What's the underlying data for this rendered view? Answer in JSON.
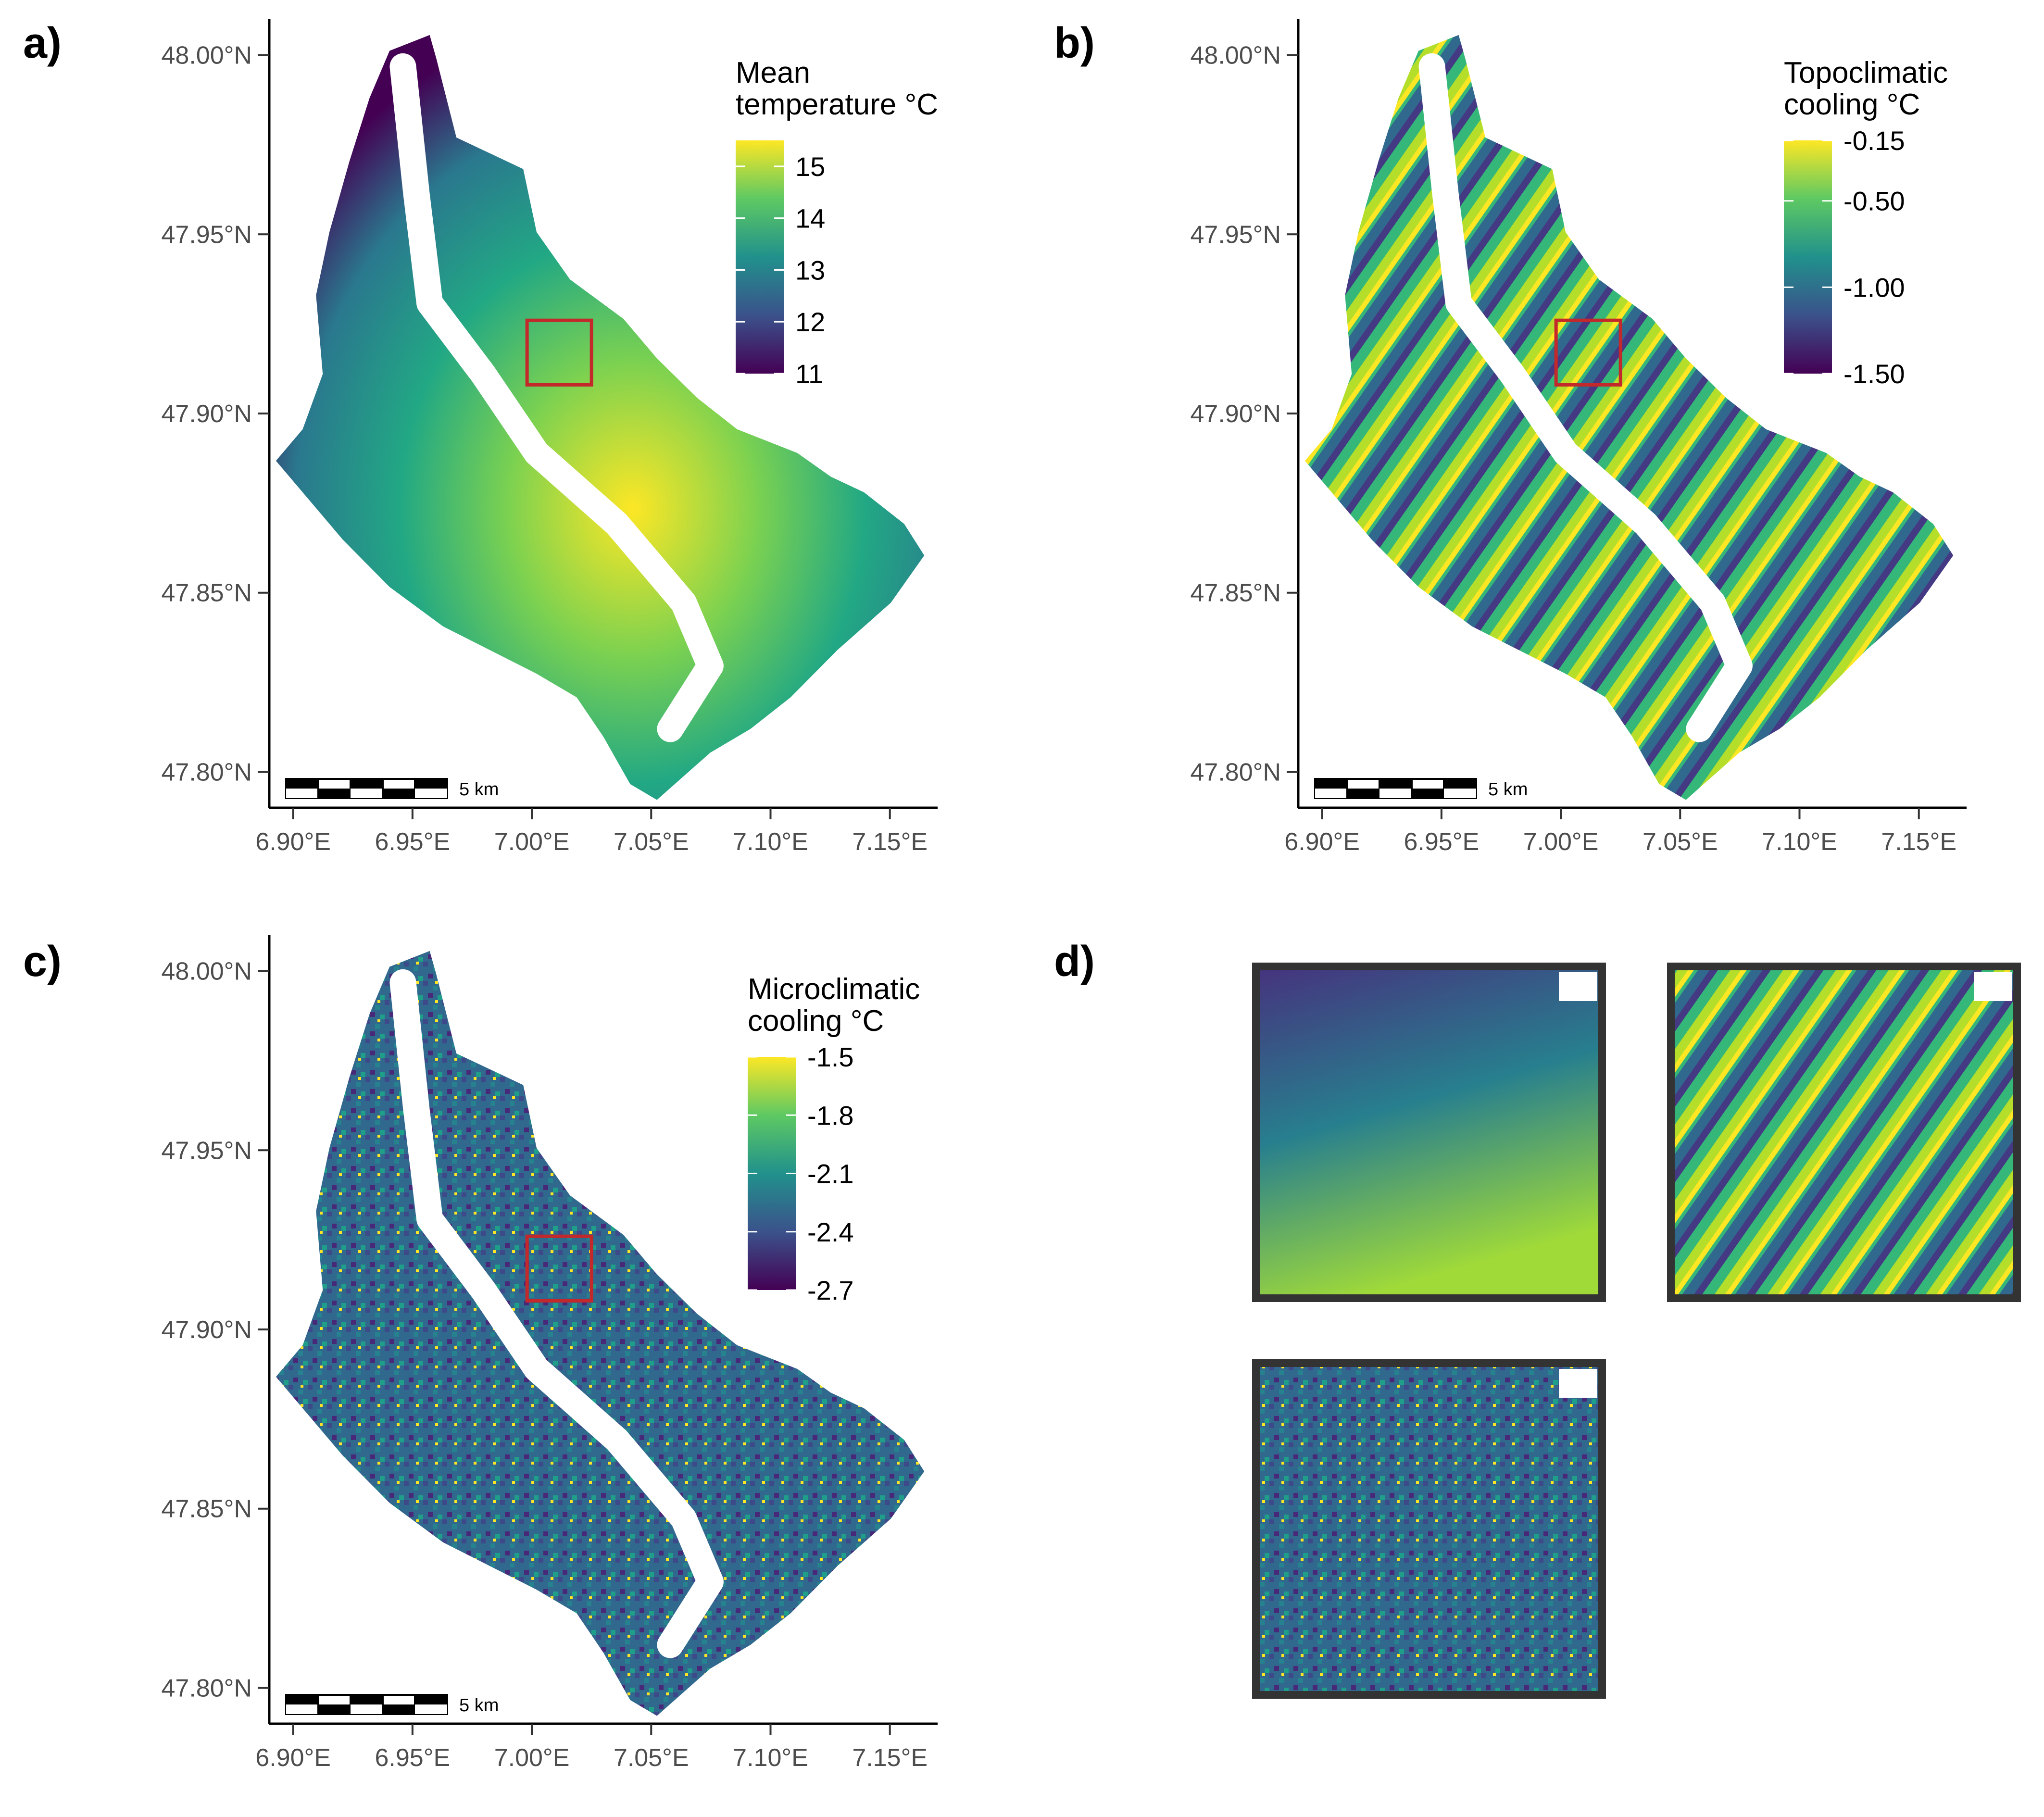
{
  "panels": [
    {
      "id": "a",
      "tag": "a)",
      "legend_title": [
        "Mean",
        "temperature °C"
      ],
      "legend_ticks": [
        "15",
        "14",
        "13",
        "12",
        "11"
      ],
      "legend_range": [
        11,
        15.5
      ],
      "legend_tick_values": [
        15,
        14,
        13,
        12,
        11
      ],
      "scale_label": "5 km"
    },
    {
      "id": "b",
      "tag": "b)",
      "legend_title": [
        "Topoclimatic",
        "cooling °C"
      ],
      "legend_ticks": [
        "-0.15",
        "-0.50",
        "-1.00",
        "-1.50"
      ],
      "legend_range": [
        -1.5,
        -0.15
      ],
      "legend_tick_values": [
        -0.15,
        -0.5,
        -1.0,
        -1.5
      ],
      "scale_label": "5 km"
    },
    {
      "id": "c",
      "tag": "c)",
      "legend_title": [
        "Microclimatic",
        "cooling °C"
      ],
      "legend_ticks": [
        "-1.5",
        "-1.8",
        "-2.1",
        "-2.4",
        "-2.7"
      ],
      "legend_range": [
        -2.7,
        -1.5
      ],
      "legend_tick_values": [
        -1.5,
        -1.8,
        -2.1,
        -2.4,
        -2.7
      ],
      "scale_label": "5 km"
    }
  ],
  "axes": {
    "y_ticks": [
      "48.00°N",
      "47.95°N",
      "47.90°N",
      "47.85°N",
      "47.80°N"
    ],
    "y_values": [
      48.0,
      47.95,
      47.9,
      47.85,
      47.8
    ],
    "x_ticks": [
      "6.90°E",
      "6.95°E",
      "7.00°E",
      "7.05°E",
      "7.10°E",
      "7.15°E"
    ],
    "x_values": [
      6.9,
      6.95,
      7.0,
      7.05,
      7.1,
      7.15
    ],
    "lat_range": [
      47.79,
      48.01
    ],
    "lon_range": [
      6.89,
      7.17
    ]
  },
  "inset_extent": {
    "lon": [
      6.998,
      7.025
    ],
    "lat": [
      47.908,
      47.926
    ]
  },
  "panel_d": {
    "tag": "d)",
    "insets": [
      "mean-temperature",
      "topoclimatic-cooling",
      "microclimatic-cooling"
    ]
  },
  "colors": {
    "viridis": [
      "#440154",
      "#3b528b",
      "#21918c",
      "#5ec962",
      "#fde725"
    ],
    "inset_box": "#c3282a",
    "inset_frame": "#333333"
  }
}
